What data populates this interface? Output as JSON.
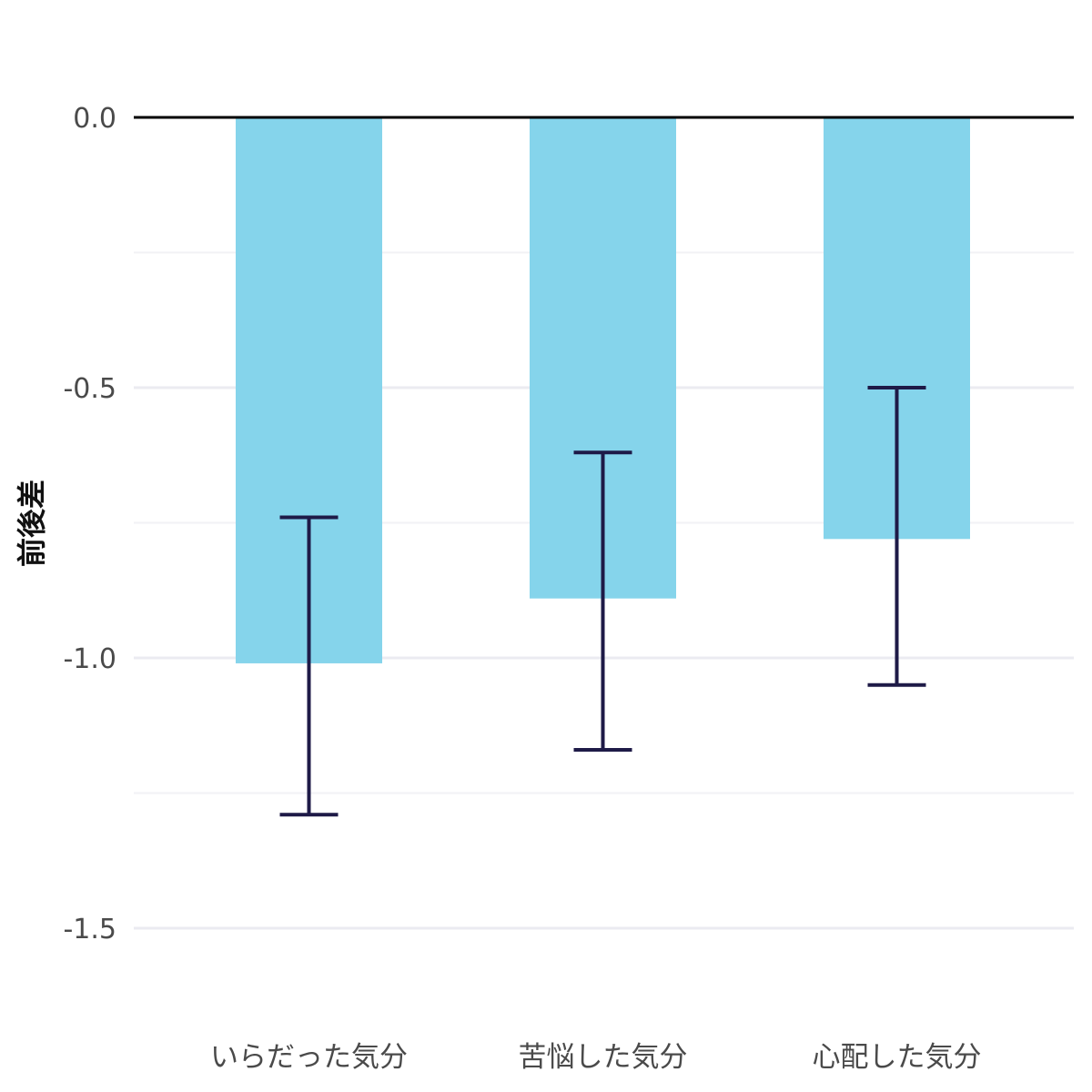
{
  "chart_data": {
    "type": "bar",
    "title": "",
    "xlabel": "",
    "ylabel": "前後差",
    "categories": [
      "いらだった気分",
      "苦悩した気分",
      "心配した気分"
    ],
    "series": [
      {
        "values": [
          -1.01,
          -0.89,
          -0.78
        ],
        "error_low": [
          -1.29,
          -1.17,
          -1.05
        ],
        "error_high": [
          -0.74,
          -0.62,
          -0.5
        ]
      }
    ],
    "ylim": [
      -1.75,
      0.22
    ],
    "yticks": [
      0.0,
      -0.5,
      -1.0,
      -1.5
    ],
    "ytick_labels": [
      "0.0",
      "-0.5",
      "-1.0",
      "-1.5"
    ],
    "minor_gridlines": [
      -0.25,
      -0.75,
      -1.25
    ],
    "grid": true,
    "legend": "none",
    "colors": {
      "bar": "#85d4eb",
      "error_bar": "#1e1a47",
      "zero_line": "#000000"
    }
  }
}
